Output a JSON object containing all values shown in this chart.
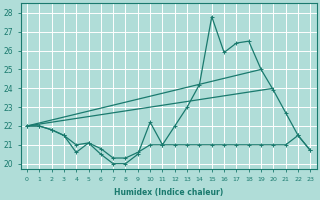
{
  "xlabel": "Humidex (Indice chaleur)",
  "bg_color": "#b0ddd8",
  "line_color": "#1a7a6e",
  "grid_color": "#ffffff",
  "xlim": [
    -0.5,
    23.5
  ],
  "ylim": [
    19.7,
    28.5
  ],
  "yticks": [
    20,
    21,
    22,
    23,
    24,
    25,
    26,
    27,
    28
  ],
  "xticks": [
    0,
    1,
    2,
    3,
    4,
    5,
    6,
    7,
    8,
    9,
    10,
    11,
    12,
    13,
    14,
    15,
    16,
    17,
    18,
    19,
    20,
    21,
    22,
    23
  ],
  "series1_x": [
    0,
    1,
    2,
    3,
    4,
    5,
    6,
    7,
    8,
    9,
    10,
    11,
    12,
    13,
    14,
    15,
    16,
    17,
    18,
    19,
    20,
    21,
    22,
    23
  ],
  "series1_y": [
    22.0,
    22.0,
    21.8,
    21.5,
    20.6,
    21.1,
    20.5,
    20.0,
    20.0,
    20.5,
    22.2,
    21.0,
    22.0,
    23.0,
    24.2,
    27.8,
    25.9,
    26.4,
    26.5,
    25.0,
    23.9,
    22.7,
    21.5,
    20.7
  ],
  "series2_x": [
    0,
    1,
    2,
    3,
    4,
    5,
    6,
    7,
    8,
    9,
    10,
    11,
    12,
    13,
    14,
    15,
    16,
    17,
    18,
    19,
    20,
    21,
    22,
    23
  ],
  "series2_y": [
    22.0,
    22.0,
    21.8,
    21.5,
    21.0,
    21.1,
    20.8,
    20.3,
    20.3,
    20.6,
    21.0,
    21.0,
    21.0,
    21.0,
    21.0,
    21.0,
    21.0,
    21.0,
    21.0,
    21.0,
    21.0,
    21.0,
    21.5,
    20.7
  ],
  "series3_x": [
    0,
    19
  ],
  "series3_y": [
    22.0,
    25.0
  ],
  "series4_x": [
    0,
    20
  ],
  "series4_y": [
    22.0,
    24.0
  ]
}
